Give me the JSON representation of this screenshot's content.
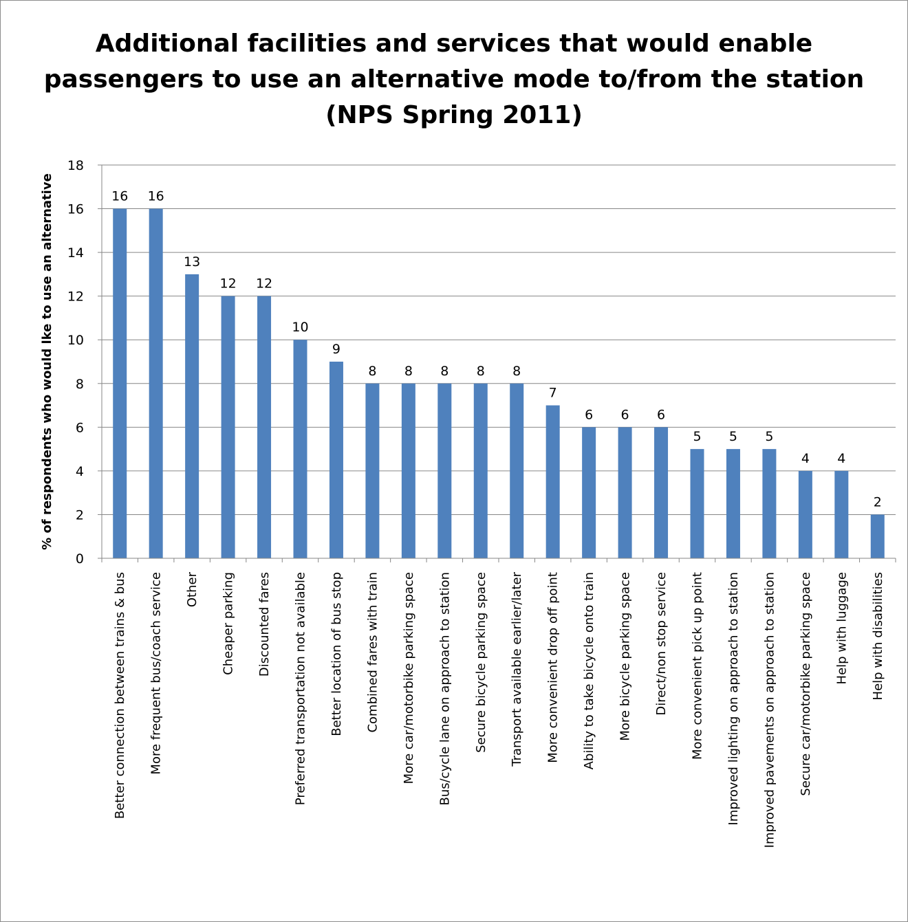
{
  "chart_data": {
    "type": "bar",
    "title": "Additional facilities and services that would enable passengers to use an alternative mode to/from the station (NPS Spring 2011)",
    "ylabel": "% of respondents who would lke to use an alternative",
    "xlabel": "",
    "ylim": [
      0,
      18
    ],
    "yticks": [
      0,
      2,
      4,
      6,
      8,
      10,
      12,
      14,
      16,
      18
    ],
    "grid": true,
    "legend": "none",
    "bar_color": "#4f81bd",
    "categories": [
      "Better connection between trains & bus",
      "More frequent bus/coach service",
      "Other",
      "Cheaper parking",
      "Discounted fares",
      "Preferred transportation not available",
      "Better location of bus stop",
      "Combined fares with train",
      "More car/motorbike parking space",
      "Bus/cycle lane on approach to station",
      "Secure bicycle parking space",
      "Transport available earlier/later",
      "More convenient drop off point",
      "Ability to take bicycle onto train",
      "More bicycle parking space",
      "Direct/non stop service",
      "More convenient pick up point",
      "Improved lighting on approach to station",
      "Improved pavements on approach to station",
      "Secure car/motorbike parking space",
      "Help with luggage",
      "Help with disabilities"
    ],
    "values": [
      16,
      16,
      13,
      12,
      12,
      10,
      9,
      8,
      8,
      8,
      8,
      8,
      7,
      6,
      6,
      6,
      5,
      5,
      5,
      4,
      4,
      2
    ]
  }
}
